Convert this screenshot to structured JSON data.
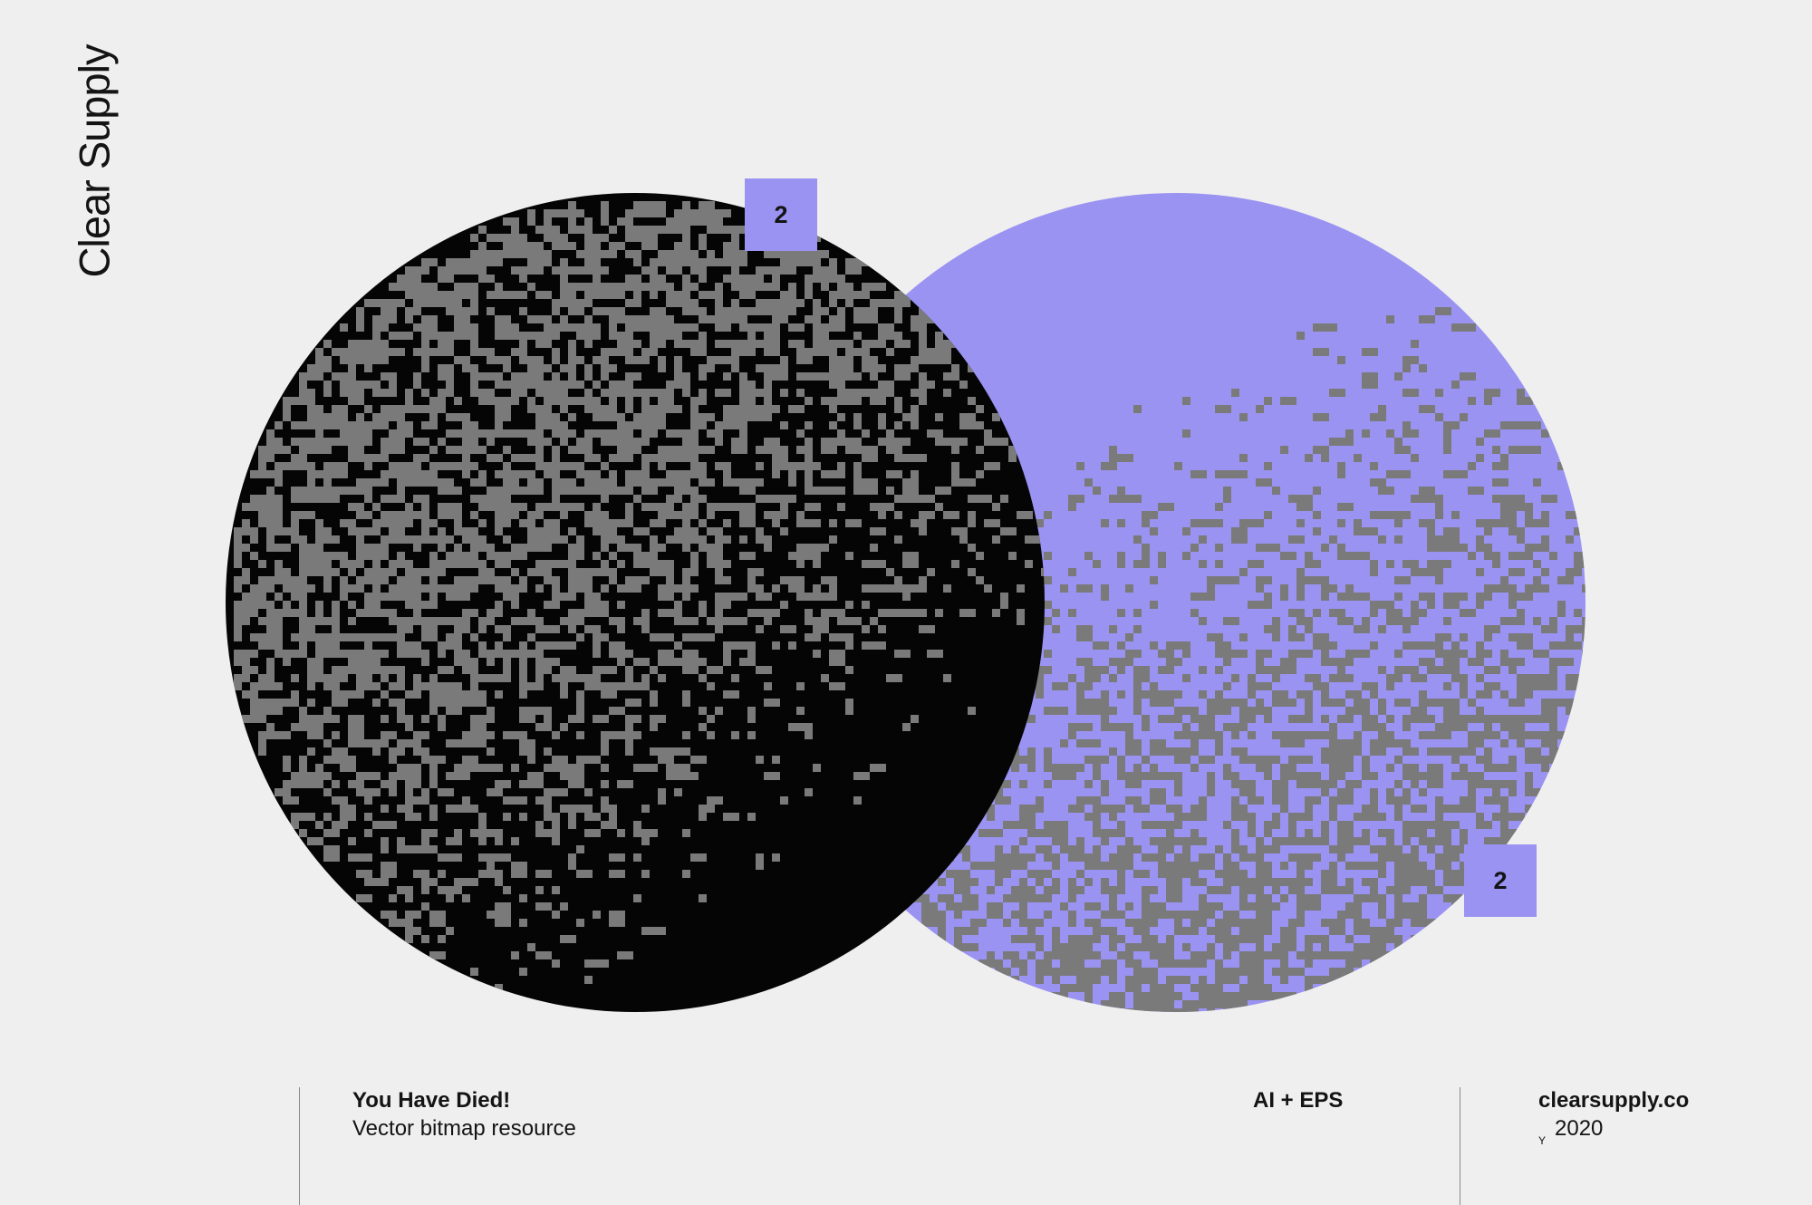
{
  "brand": {
    "name": "Clear Supply"
  },
  "artwork": {
    "circles": [
      {
        "name": "black-circle",
        "base_color": "#050505",
        "pixel_color": "#7a7a7a",
        "badge": "2"
      },
      {
        "name": "purple-circle",
        "base_color": "#9a93f2",
        "pixel_color": "#7a7a7a",
        "badge": "2"
      }
    ]
  },
  "footer": {
    "title": "You Have Died!",
    "subtitle": "Vector bitmap resource",
    "formats": "AI + EPS",
    "website": "clearsupply.co",
    "year_prefix": "Y",
    "year": "2020"
  },
  "colors": {
    "background": "#efefef",
    "accent": "#9a93f2",
    "black": "#050505",
    "grain": "#7a7a7a",
    "text": "#141414"
  }
}
